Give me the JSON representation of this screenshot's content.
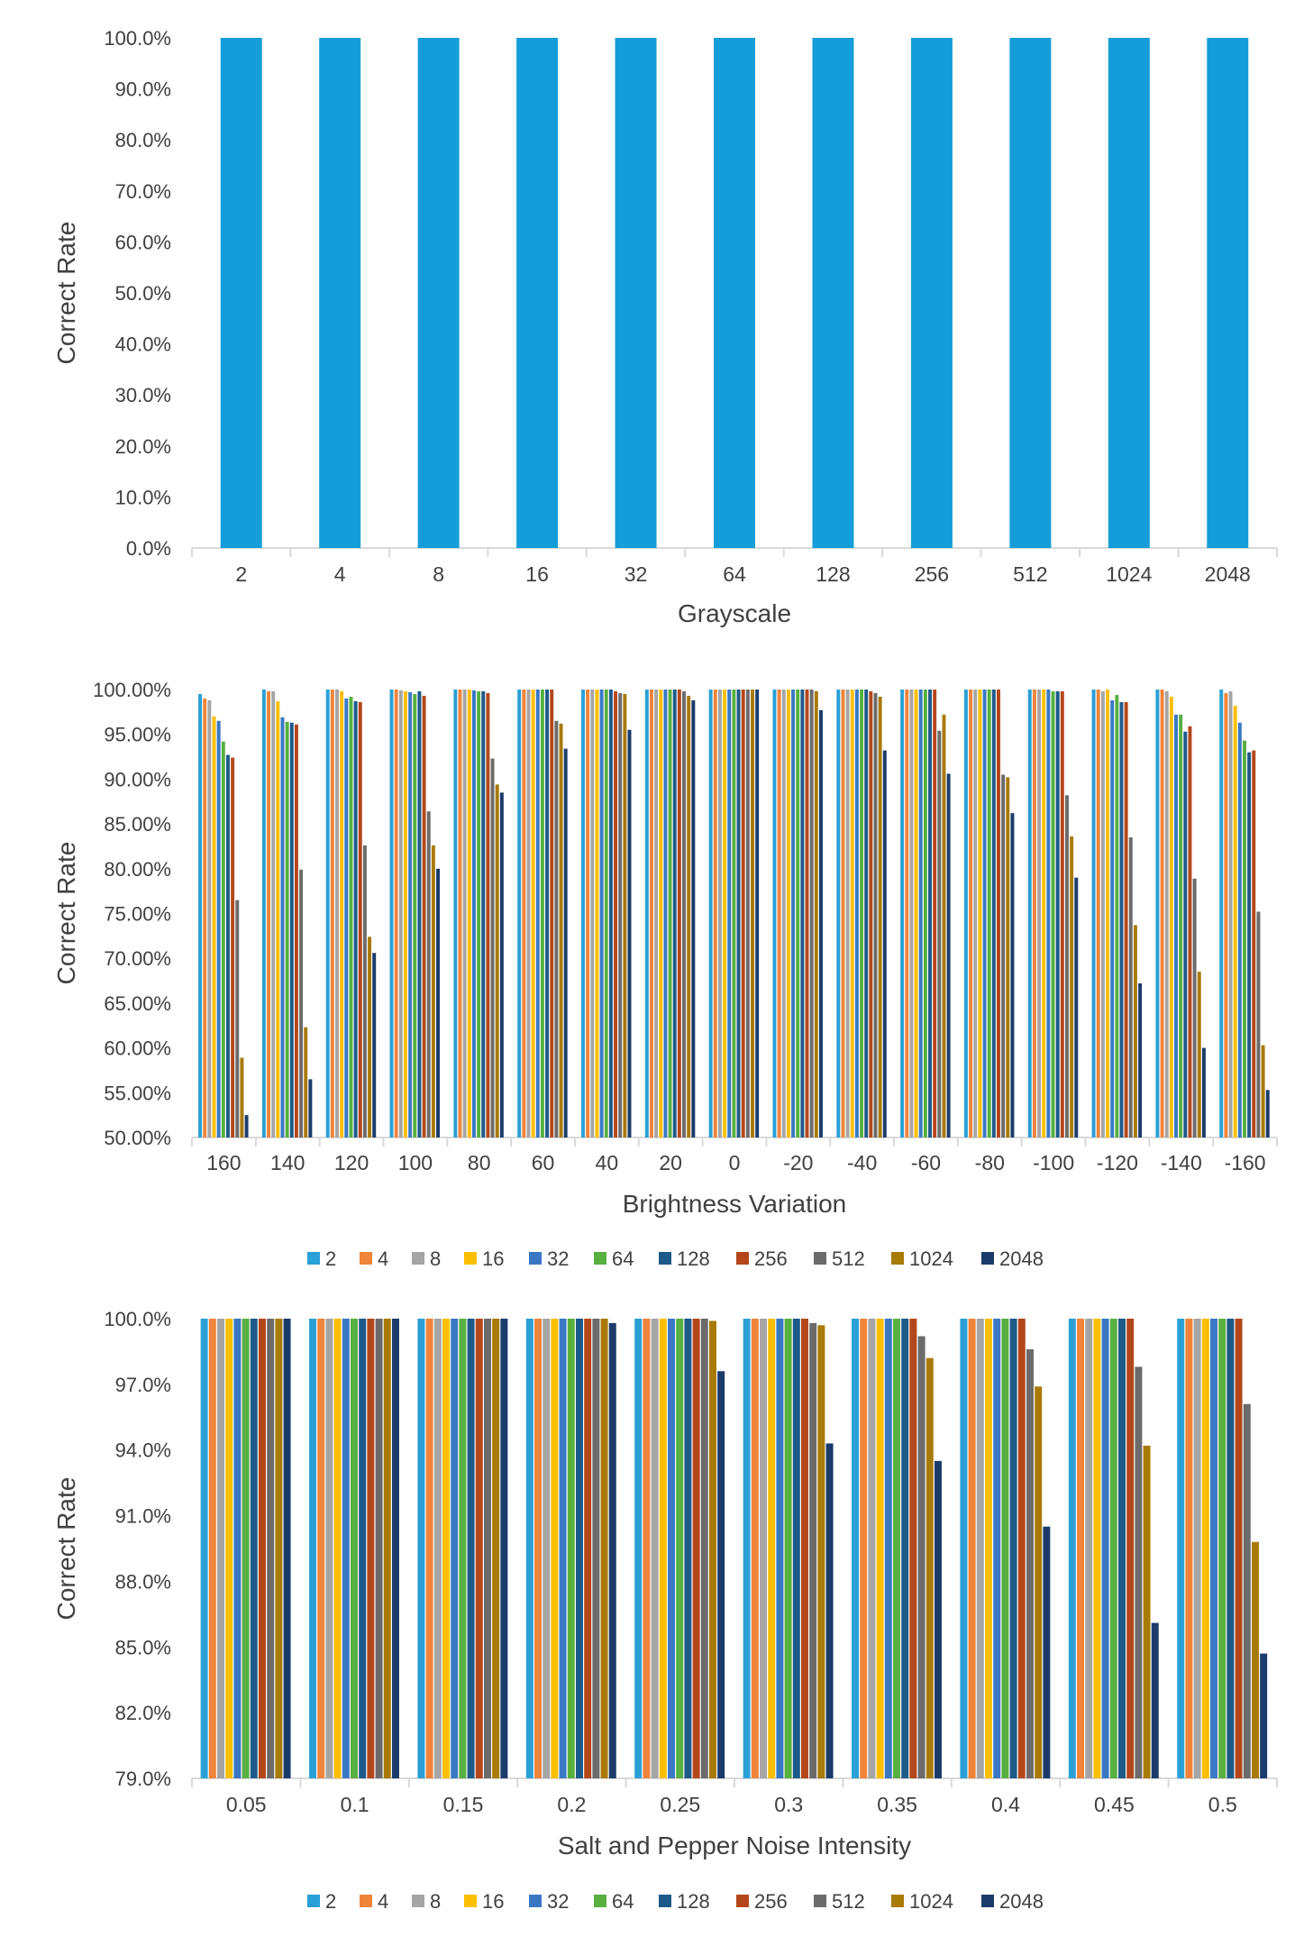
{
  "colors": {
    "series": [
      "#2aa0d6",
      "#f0843a",
      "#a5a5a5",
      "#fbbf00",
      "#3a78c4",
      "#57b040",
      "#1d5a8a",
      "#b4471a",
      "#6b6b6b",
      "#a87a06",
      "#1b3c6b"
    ],
    "single": "#149dd8",
    "axis": "#d9d9d9",
    "text": "#404040"
  },
  "chart_data": [
    {
      "type": "bar",
      "title": "",
      "xlabel": "Grayscale",
      "ylabel": "Correct Rate",
      "ylim": [
        0,
        100
      ],
      "ytick_step": 10,
      "ytick_decimals": 1,
      "grid": false,
      "categories": [
        "2",
        "4",
        "8",
        "16",
        "32",
        "64",
        "128",
        "256",
        "512",
        "1024",
        "2048"
      ],
      "series": [
        {
          "name": "Correct Rate",
          "values": [
            100,
            100,
            100,
            100,
            100,
            100,
            100,
            100,
            100,
            100,
            100
          ]
        }
      ]
    },
    {
      "type": "bar",
      "title": "",
      "xlabel": "Brightness Variation",
      "ylabel": "Correct Rate",
      "ylim": [
        50,
        100
      ],
      "ytick_step": 5,
      "ytick_decimals": 2,
      "grid": false,
      "legend": "bottom",
      "categories": [
        "160",
        "140",
        "120",
        "100",
        "80",
        "60",
        "40",
        "20",
        "0",
        "-20",
        "-40",
        "-60",
        "-80",
        "-100",
        "-120",
        "-140",
        "-160"
      ],
      "series": [
        {
          "name": "2",
          "values": [
            99.5,
            100,
            100,
            100,
            100,
            100,
            100,
            100,
            100,
            100,
            100,
            100,
            100,
            100,
            100,
            100,
            100
          ]
        },
        {
          "name": "4",
          "values": [
            99.0,
            99.8,
            100,
            100,
            100,
            100,
            100,
            100,
            100,
            100,
            100,
            100,
            100,
            100,
            100,
            100,
            99.6
          ]
        },
        {
          "name": "8",
          "values": [
            98.8,
            99.8,
            100,
            99.9,
            100,
            100,
            100,
            100,
            100,
            100,
            100,
            100,
            100,
            100,
            99.8,
            99.8,
            99.8
          ]
        },
        {
          "name": "16",
          "values": [
            97.0,
            98.7,
            99.8,
            99.8,
            100,
            100,
            100,
            100,
            100,
            100,
            100,
            100,
            100,
            100,
            100,
            99.2,
            98.2
          ]
        },
        {
          "name": "32",
          "values": [
            96.5,
            96.9,
            99.0,
            99.7,
            99.9,
            100,
            100,
            100,
            100,
            100,
            100,
            100,
            100,
            100,
            98.8,
            97.2,
            96.3
          ]
        },
        {
          "name": "64",
          "values": [
            94.2,
            96.4,
            99.2,
            99.5,
            99.8,
            100,
            100,
            100,
            100,
            100,
            100,
            100,
            100,
            99.8,
            99.4,
            97.2,
            94.3
          ]
        },
        {
          "name": "128",
          "values": [
            92.7,
            96.3,
            98.7,
            99.8,
            99.8,
            100,
            100,
            100,
            100,
            100,
            100,
            100,
            100,
            99.8,
            98.6,
            95.3,
            93.0
          ]
        },
        {
          "name": "256",
          "values": [
            92.4,
            96.1,
            98.6,
            99.3,
            99.6,
            100,
            99.8,
            100,
            100,
            100,
            99.8,
            100,
            100,
            99.8,
            98.6,
            95.9,
            93.2
          ]
        },
        {
          "name": "512",
          "values": [
            76.5,
            79.9,
            82.6,
            86.4,
            92.3,
            96.5,
            99.6,
            99.8,
            100,
            100,
            99.6,
            95.4,
            90.5,
            88.2,
            83.5,
            78.9,
            75.2
          ]
        },
        {
          "name": "1024",
          "values": [
            58.9,
            62.3,
            72.4,
            82.6,
            89.4,
            96.2,
            99.5,
            99.3,
            100,
            99.8,
            99.2,
            97.2,
            90.2,
            83.6,
            73.7,
            68.5,
            60.3
          ]
        },
        {
          "name": "2048",
          "values": [
            52.5,
            56.5,
            70.6,
            80.0,
            88.5,
            93.4,
            95.5,
            98.8,
            100,
            97.7,
            93.2,
            90.6,
            86.2,
            79.0,
            67.2,
            60.0,
            55.3
          ]
        }
      ]
    },
    {
      "type": "bar",
      "title": "",
      "xlabel": "Salt and Pepper Noise Intensity",
      "ylabel": "Correct Rate",
      "ylim": [
        79,
        100
      ],
      "ytick_step": 3,
      "ytick_decimals": 1,
      "grid": false,
      "legend": "bottom",
      "categories": [
        "0.05",
        "0.1",
        "0.15",
        "0.2",
        "0.25",
        "0.3",
        "0.35",
        "0.4",
        "0.45",
        "0.5"
      ],
      "series": [
        {
          "name": "2",
          "values": [
            100,
            100,
            100,
            100,
            100,
            100,
            100,
            100,
            100,
            100
          ]
        },
        {
          "name": "4",
          "values": [
            100,
            100,
            100,
            100,
            100,
            100,
            100,
            100,
            100,
            100
          ]
        },
        {
          "name": "8",
          "values": [
            100,
            100,
            100,
            100,
            100,
            100,
            100,
            100,
            100,
            100
          ]
        },
        {
          "name": "16",
          "values": [
            100,
            100,
            100,
            100,
            100,
            100,
            100,
            100,
            100,
            100
          ]
        },
        {
          "name": "32",
          "values": [
            100,
            100,
            100,
            100,
            100,
            100,
            100,
            100,
            100,
            100
          ]
        },
        {
          "name": "64",
          "values": [
            100,
            100,
            100,
            100,
            100,
            100,
            100,
            100,
            100,
            100
          ]
        },
        {
          "name": "128",
          "values": [
            100,
            100,
            100,
            100,
            100,
            100,
            100,
            100,
            100,
            100
          ]
        },
        {
          "name": "256",
          "values": [
            100,
            100,
            100,
            100,
            100,
            100,
            100,
            100,
            100,
            100
          ]
        },
        {
          "name": "512",
          "values": [
            100,
            100,
            100,
            100,
            100,
            99.8,
            99.2,
            98.6,
            97.8,
            96.1
          ]
        },
        {
          "name": "1024",
          "values": [
            100,
            100,
            100,
            100,
            99.9,
            99.7,
            98.2,
            96.9,
            94.2,
            89.8
          ]
        },
        {
          "name": "2048",
          "values": [
            100,
            100,
            100,
            99.8,
            97.6,
            94.3,
            93.5,
            90.5,
            86.1,
            84.7
          ]
        }
      ]
    }
  ]
}
